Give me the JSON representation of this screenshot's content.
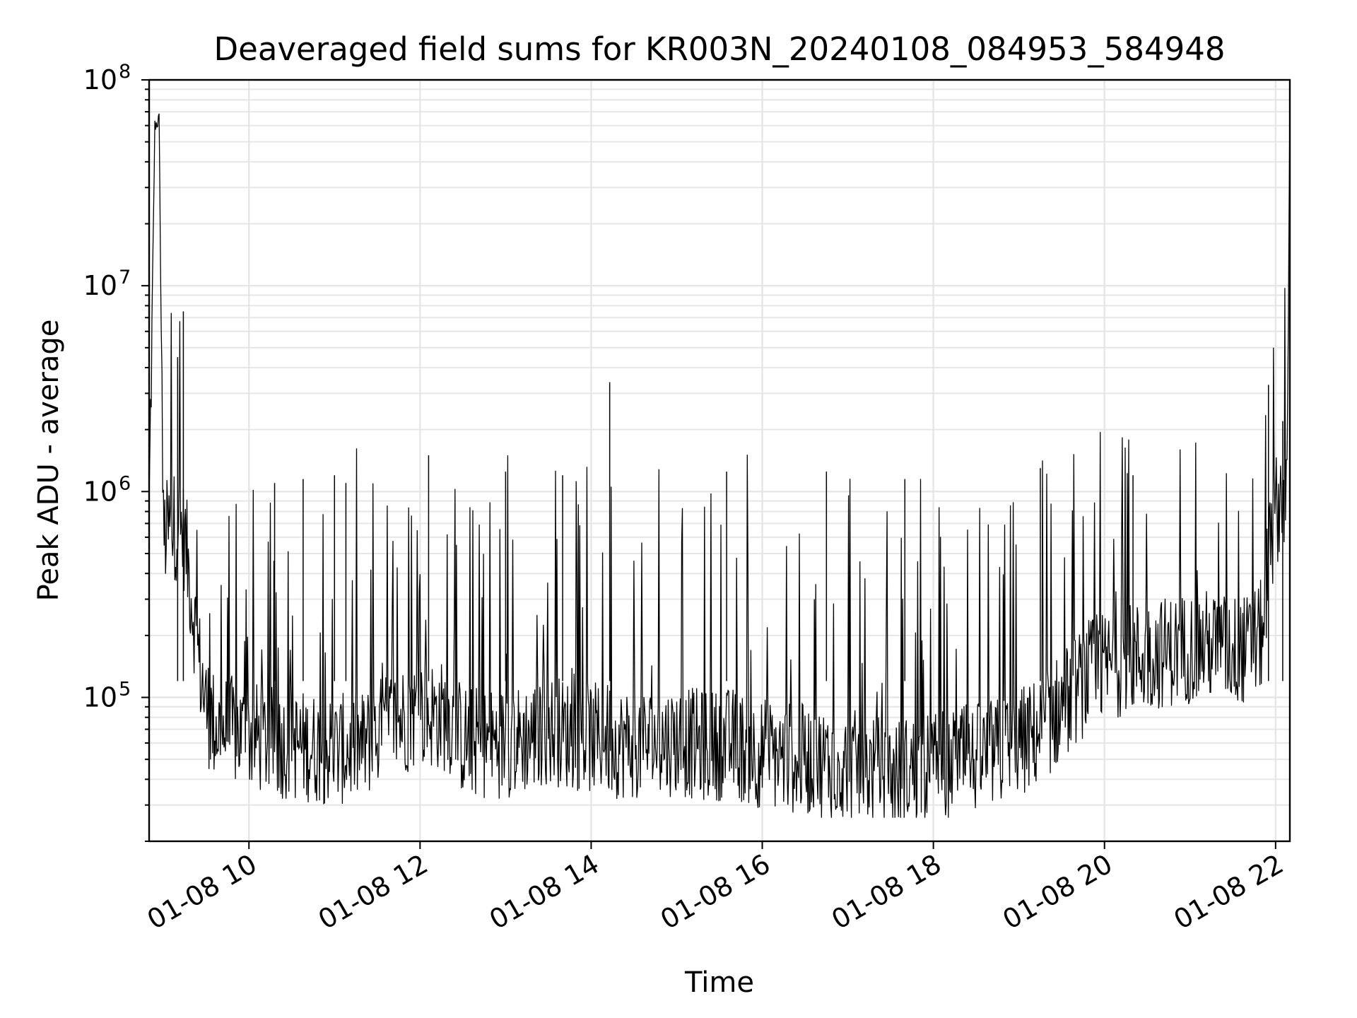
{
  "chart_data": {
    "type": "line",
    "title": "Deaveraged field sums for KR003N_20240108_084953_584948",
    "xlabel": "Time",
    "ylabel": "Peak ADU - average",
    "yscale": "log",
    "ylim": [
      20000,
      100000000
    ],
    "xlim": [
      "2024-01-08 08:50",
      "2024-01-08 22:10"
    ],
    "x_ticks": [
      {
        "at": "2024-01-08 10:00",
        "label": "01-08 10"
      },
      {
        "at": "2024-01-08 12:00",
        "label": "01-08 12"
      },
      {
        "at": "2024-01-08 14:00",
        "label": "01-08 14"
      },
      {
        "at": "2024-01-08 16:00",
        "label": "01-08 16"
      },
      {
        "at": "2024-01-08 18:00",
        "label": "01-08 18"
      },
      {
        "at": "2024-01-08 20:00",
        "label": "01-08 20"
      },
      {
        "at": "2024-01-08 22:00",
        "label": "01-08 22"
      }
    ],
    "y_ticks": [
      {
        "value": 100000,
        "base": "10",
        "exp": "5"
      },
      {
        "value": 1000000,
        "base": "10",
        "exp": "6"
      },
      {
        "value": 10000000,
        "base": "10",
        "exp": "7"
      },
      {
        "value": 100000000,
        "base": "10",
        "exp": "8"
      }
    ],
    "grid": true,
    "line_color": "#000000",
    "series": [
      {
        "x": [
          "2024-01-08 08:50",
          "2024-01-08 08:54",
          "2024-01-08 08:57",
          "2024-01-08 09:00",
          "2024-01-08 09:05",
          "2024-01-08 09:10",
          "2024-01-08 09:15",
          "2024-01-08 09:20",
          "2024-01-08 09:25",
          "2024-01-08 09:30",
          "2024-01-08 09:35",
          "2024-01-08 09:40",
          "2024-01-08 09:50",
          "2024-01-08 10:00",
          "2024-01-08 10:20",
          "2024-01-08 10:40",
          "2024-01-08 11:00",
          "2024-01-08 11:20",
          "2024-01-08 11:40",
          "2024-01-08 12:00",
          "2024-01-08 12:20",
          "2024-01-08 12:30",
          "2024-01-08 12:50",
          "2024-01-08 13:10",
          "2024-01-08 13:30",
          "2024-01-08 13:50",
          "2024-01-08 14:10",
          "2024-01-08 14:20",
          "2024-01-08 14:40",
          "2024-01-08 15:00",
          "2024-01-08 15:20",
          "2024-01-08 15:40",
          "2024-01-08 15:50",
          "2024-01-08 16:10",
          "2024-01-08 16:30",
          "2024-01-08 16:50",
          "2024-01-08 17:10",
          "2024-01-08 17:30",
          "2024-01-08 17:50",
          "2024-01-08 18:10",
          "2024-01-08 18:30",
          "2024-01-08 18:50",
          "2024-01-08 19:10",
          "2024-01-08 19:30",
          "2024-01-08 19:50",
          "2024-01-08 20:10",
          "2024-01-08 20:30",
          "2024-01-08 20:50",
          "2024-01-08 21:10",
          "2024-01-08 21:30",
          "2024-01-08 21:40",
          "2024-01-08 21:50",
          "2024-01-08 21:55",
          "2024-01-08 22:00",
          "2024-01-08 22:05",
          "2024-01-08 22:08",
          "2024-01-08 22:10"
        ],
        "y": [
          750000,
          60000000,
          64000000,
          600000,
          650000,
          700000,
          600000,
          300000,
          150000,
          90000,
          75000,
          70000,
          68000,
          65000,
          60000,
          58000,
          55000,
          58000,
          75000,
          85000,
          80000,
          62000,
          60000,
          62000,
          70000,
          65000,
          62000,
          60000,
          60000,
          62000,
          58000,
          60000,
          55000,
          52000,
          50000,
          48000,
          46000,
          42000,
          45000,
          48000,
          50000,
          55000,
          65000,
          90000,
          130000,
          150000,
          160000,
          170000,
          180000,
          170000,
          170000,
          200000,
          450000,
          800000,
          1000000,
          900000,
          70000000
        ]
      }
    ],
    "spikes": [
      {
        "x": "2024-01-08 09:10",
        "y": 4500000
      },
      {
        "x": "2024-01-08 09:14",
        "y": 7500000
      },
      {
        "x": "2024-01-08 10:18",
        "y": 1100000
      },
      {
        "x": "2024-01-08 10:38",
        "y": 1150000
      },
      {
        "x": "2024-01-08 11:00",
        "y": 1200000
      },
      {
        "x": "2024-01-08 11:08",
        "y": 1100000
      },
      {
        "x": "2024-01-08 12:06",
        "y": 1500000
      },
      {
        "x": "2024-01-08 13:00",
        "y": 1250000
      },
      {
        "x": "2024-01-08 13:40",
        "y": 1200000
      },
      {
        "x": "2024-01-08 14:13",
        "y": 3400000
      },
      {
        "x": "2024-01-08 15:35",
        "y": 1250000
      },
      {
        "x": "2024-01-08 16:45",
        "y": 1250000
      },
      {
        "x": "2024-01-08 17:40",
        "y": 1150000
      },
      {
        "x": "2024-01-08 19:15",
        "y": 1300000
      },
      {
        "x": "2024-01-08 20:20",
        "y": 1200000
      },
      {
        "x": "2024-01-08 21:55",
        "y": 3300000
      },
      {
        "x": "2024-01-08 22:05",
        "y": 2200000
      }
    ]
  }
}
